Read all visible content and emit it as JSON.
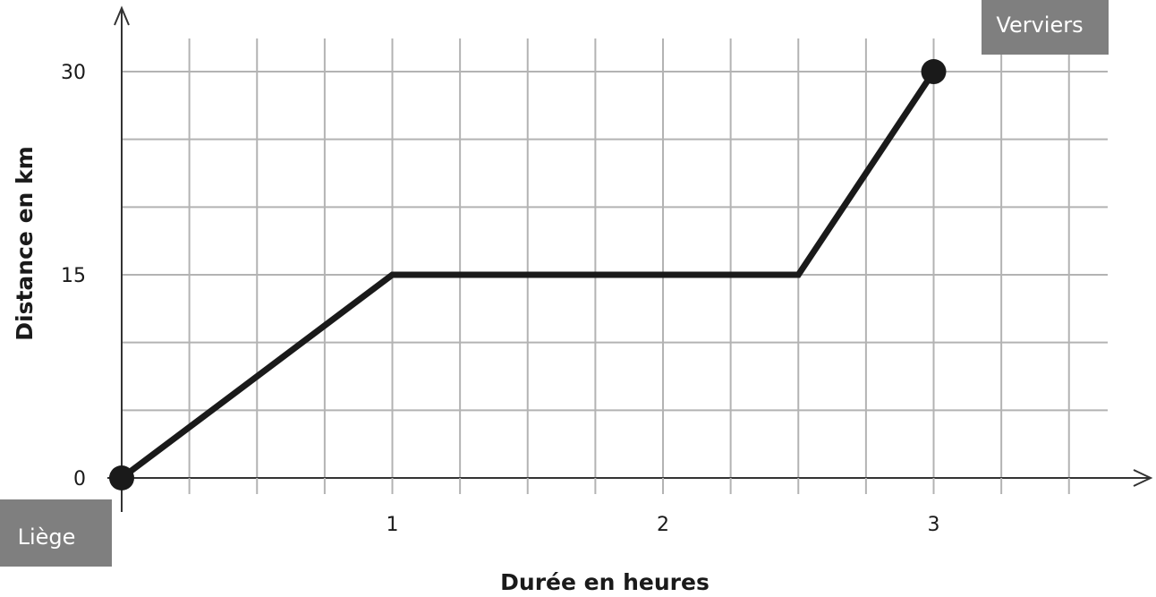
{
  "chart_data": {
    "type": "line",
    "xlabel": "Durée en heures",
    "ylabel": "Distance en km",
    "xlim": [
      0,
      3.6
    ],
    "ylim": [
      0,
      30.5
    ],
    "x_ticks": [
      {
        "value": 1,
        "label": "1"
      },
      {
        "value": 2,
        "label": "2"
      },
      {
        "value": 3,
        "label": "3"
      }
    ],
    "y_ticks": [
      {
        "value": 0,
        "label": "0"
      },
      {
        "value": 15,
        "label": "15"
      },
      {
        "value": 30,
        "label": "30"
      }
    ],
    "grid": true,
    "grid_step_x": 0.25,
    "grid_step_y": 5,
    "series": [
      {
        "points": [
          {
            "x": 0,
            "y": 0
          },
          {
            "x": 1,
            "y": 15
          },
          {
            "x": 2.5,
            "y": 15
          },
          {
            "x": 3,
            "y": 30
          }
        ],
        "color": "#1a1a1a"
      }
    ],
    "endpoints": [
      {
        "x": 0,
        "y": 0,
        "label": "Liège"
      },
      {
        "x": 3,
        "y": 30,
        "label": "Verviers"
      }
    ],
    "grid_color": "#b3b3b3",
    "label_box_color": "#7f7f7f"
  }
}
